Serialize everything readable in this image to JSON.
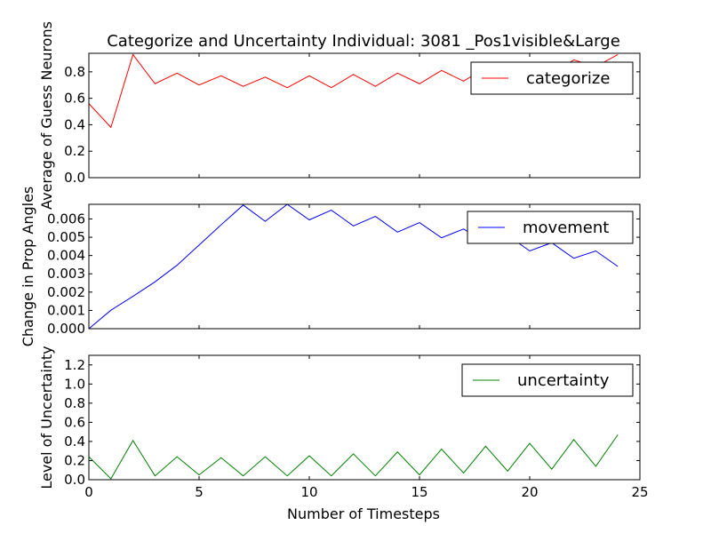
{
  "title": "Categorize and Uncertainty Individual: 3081 _Pos1visible&Large",
  "xlabel": "Number of Timesteps",
  "chart_data": [
    {
      "type": "line",
      "ylabel": "Average of Guess Neurons",
      "xlim": [
        0,
        25
      ],
      "ylim": [
        0,
        0.94
      ],
      "xticks": [
        0,
        5,
        10,
        15,
        20,
        25
      ],
      "xtick_labels_visible": false,
      "yticks": [
        0.0,
        0.2,
        0.4,
        0.6,
        0.8
      ],
      "ytick_labels": [
        "0.0",
        "0.2",
        "0.4",
        "0.6",
        "0.8"
      ],
      "legend_position": "upper right",
      "series": [
        {
          "name": "categorize",
          "color": "#ff0000",
          "x": [
            0,
            1,
            2,
            3,
            4,
            5,
            6,
            7,
            8,
            9,
            10,
            11,
            12,
            13,
            14,
            15,
            16,
            17,
            18,
            19,
            20,
            21,
            22,
            23,
            24
          ],
          "values": [
            0.56,
            0.38,
            0.93,
            0.71,
            0.79,
            0.7,
            0.77,
            0.69,
            0.76,
            0.68,
            0.77,
            0.68,
            0.78,
            0.69,
            0.79,
            0.71,
            0.81,
            0.73,
            0.83,
            0.75,
            0.85,
            0.78,
            0.89,
            0.84,
            0.93
          ]
        }
      ]
    },
    {
      "type": "line",
      "ylabel": "Change in Prop Angles",
      "xlim": [
        0,
        25
      ],
      "ylim": [
        0,
        0.0068
      ],
      "xticks": [
        0,
        5,
        10,
        15,
        20,
        25
      ],
      "xtick_labels_visible": false,
      "yticks": [
        0.0,
        0.001,
        0.002,
        0.003,
        0.004,
        0.005,
        0.006
      ],
      "ytick_labels": [
        "0.000",
        "0.001",
        "0.002",
        "0.003",
        "0.004",
        "0.005",
        "0.006"
      ],
      "legend_position": "upper right",
      "series": [
        {
          "name": "movement",
          "color": "#0000ff",
          "x": [
            0,
            1,
            2,
            3,
            4,
            5,
            6,
            7,
            8,
            9,
            10,
            11,
            12,
            13,
            14,
            15,
            16,
            17,
            18,
            19,
            20,
            21,
            22,
            23,
            24
          ],
          "values": [
            0.0,
            0.00101,
            0.00177,
            0.00256,
            0.00347,
            0.00457,
            0.00568,
            0.00676,
            0.00587,
            0.0068,
            0.00595,
            0.00648,
            0.00562,
            0.00614,
            0.00528,
            0.0058,
            0.00497,
            0.00545,
            0.00472,
            0.0051,
            0.00425,
            0.0047,
            0.00385,
            0.00425,
            0.0034
          ]
        }
      ]
    },
    {
      "type": "line",
      "ylabel": "Level of Uncertainty",
      "xlim": [
        0,
        25
      ],
      "ylim": [
        0,
        1.3
      ],
      "xticks": [
        0,
        5,
        10,
        15,
        20,
        25
      ],
      "xtick_labels": [
        "0",
        "5",
        "10",
        "15",
        "20",
        "25"
      ],
      "yticks": [
        0.0,
        0.2,
        0.4,
        0.6,
        0.8,
        1.0,
        1.2
      ],
      "ytick_labels": [
        "0.0",
        "0.2",
        "0.4",
        "0.6",
        "0.8",
        "1.0",
        "1.2"
      ],
      "legend_position": "upper right",
      "series": [
        {
          "name": "uncertainty",
          "color": "#008000",
          "x": [
            0,
            1,
            2,
            3,
            4,
            5,
            6,
            7,
            8,
            9,
            10,
            11,
            12,
            13,
            14,
            15,
            16,
            17,
            18,
            19,
            20,
            21,
            22,
            23,
            24
          ],
          "values": [
            0.24,
            0.01,
            0.41,
            0.04,
            0.24,
            0.05,
            0.23,
            0.04,
            0.24,
            0.04,
            0.25,
            0.04,
            0.27,
            0.04,
            0.29,
            0.05,
            0.32,
            0.07,
            0.35,
            0.09,
            0.38,
            0.11,
            0.42,
            0.14,
            0.47
          ]
        }
      ]
    }
  ]
}
